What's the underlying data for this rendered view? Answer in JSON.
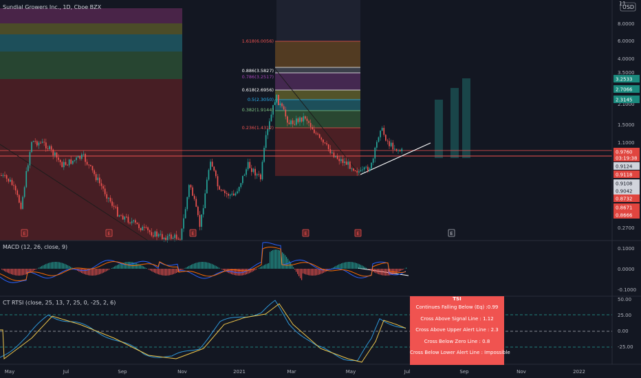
{
  "title": "Sundial Growers Inc., 1D, Cboe BZX",
  "currency": "USD",
  "colors": {
    "bg": "#131722",
    "up": "#26a69a",
    "down": "#ef5350",
    "macd": "#2962ff",
    "signal": "#ff6d00",
    "tsi_a": "#2f98d8",
    "tsi_b": "#f2c94c",
    "alert": "#f05350",
    "text": "#b2b5be"
  },
  "price_axis": {
    "ticks": [
      "8.0000",
      "6.0000",
      "4.0000",
      "3.5000",
      "2.1000",
      "1.5000",
      "1.1000",
      "0.2700"
    ],
    "top_partial": "11"
  },
  "price_labels": [
    {
      "text": "3.2533",
      "kind": "up"
    },
    {
      "text": "2.7066",
      "kind": "up"
    },
    {
      "text": "2.3145",
      "kind": "up"
    },
    {
      "text": "0.9760",
      "kind": "down"
    },
    {
      "text": "03:19:38",
      "kind": "down_timer"
    },
    {
      "text": "0.9124",
      "kind": "gray"
    },
    {
      "text": "0.9118",
      "kind": "down"
    },
    {
      "text": "0.9108",
      "kind": "gray"
    },
    {
      "text": "0.9042",
      "kind": "gray"
    },
    {
      "text": "0.8732",
      "kind": "down"
    },
    {
      "text": "0.8671",
      "kind": "down"
    },
    {
      "text": "0.8666",
      "kind": "down"
    }
  ],
  "fib_levels": [
    {
      "label": "1.618(6.0056)",
      "color": "#f05350"
    },
    {
      "label": "0.886(3.5827)",
      "color": "#ffffff"
    },
    {
      "label": "0.786(3.2517)",
      "color": "#ab47bc"
    },
    {
      "label": "0.618(2.6956)",
      "color": "#ffffff"
    },
    {
      "label": "0.5(2.3050)",
      "color": "#29b6f6"
    },
    {
      "label": "0.382(1.9144)",
      "color": "#81c784"
    },
    {
      "label": "0.236(1.4312)",
      "color": "#f05350"
    }
  ],
  "events": [
    "E",
    "E",
    "E",
    "E",
    "E",
    "E"
  ],
  "macd": {
    "label": "MACD (12, 26, close, 9)",
    "ticks": [
      "0.1000",
      "0.0000",
      "-0.1000"
    ]
  },
  "tsi": {
    "label": "CT RTSI (close, 25, 13, 7, 25, 0, -25, 2, 6)",
    "ticks": [
      "50.00",
      "25.00",
      "0.00",
      "-25.00"
    ]
  },
  "x_axis": [
    "May",
    "Jul",
    "Sep",
    "Nov",
    "2021",
    "Mar",
    "May",
    "Jul",
    "Sep",
    "Nov",
    "2022"
  ],
  "alert_box": {
    "title": "TSI",
    "lines": [
      "Continues Falling Below (Eq) :0.99",
      "Cross Above Signal Line : 1.12",
      "Cross Above Upper Alert Line : 2.3",
      "Cross Below Zero Line : 0.8",
      "Cross Below Lower Alert Line : Impossible"
    ]
  },
  "chart_data": [
    {
      "type": "line",
      "title": "Sundial Growers Inc., 1D, Cboe BZX",
      "ylabel": "USD",
      "log_scale": true,
      "series": [
        {
          "name": "",
          "x": [
            "May",
            "Jul",
            "Sep",
            "Nov",
            "2021",
            "Mar",
            "May",
            "Jul"
          ],
          "values": [
            0.6,
            1.05,
            0.55,
            0.25,
            0.7,
            1.5,
            0.86,
            0.98
          ]
        }
      ]
    },
    {
      "type": "line",
      "title": "MACD (12, 26, close, 9)",
      "ylim": [
        -0.1,
        0.1
      ]
    },
    {
      "type": "line",
      "title": "CT RTSI (close, 25, 13, 7, 25, 0, -25, 2, 6)",
      "ylim": [
        -25,
        50
      ]
    }
  ]
}
